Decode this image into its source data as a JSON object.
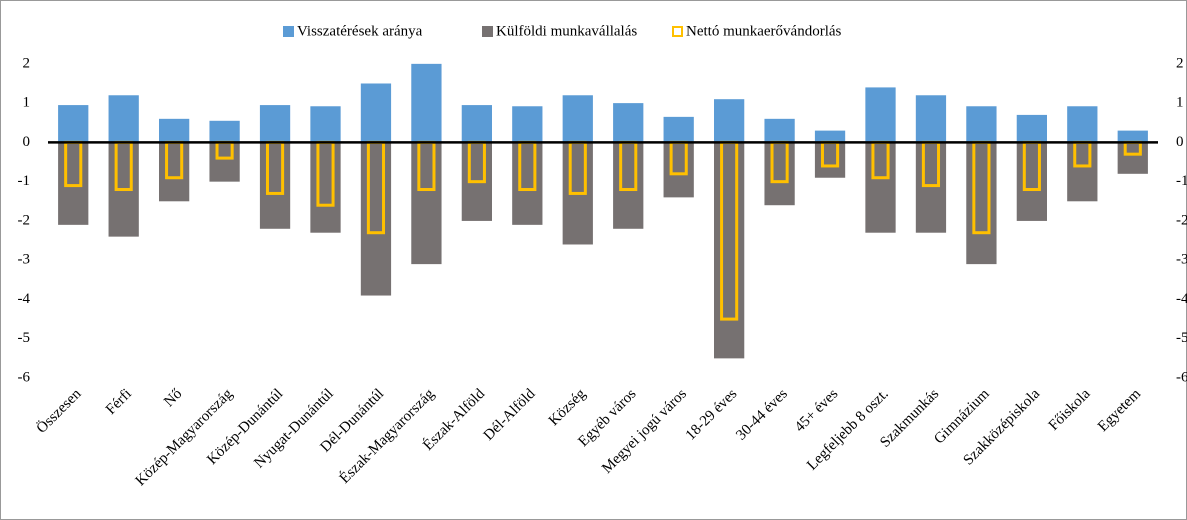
{
  "chart_data": {
    "type": "bar",
    "categories": [
      "Összesen",
      "Férfi",
      "Nő",
      "Közép-Magyarország",
      "Közép-Dunántúl",
      "Nyugat-Dunántúl",
      "Dél-Dunántúl",
      "Észak-Magyarország",
      "Észak-Alföld",
      "Dél-Alföld",
      "Község",
      "Egyéb város",
      "Megyei jogú város",
      "18-29 éves",
      "30-44 éves",
      "45+ éves",
      "Legfeljebb 8 oszt.",
      "Szakmunkás",
      "Gimnázium",
      "Szakközépiskola",
      "Főiskola",
      "Egyetem"
    ],
    "series": [
      {
        "name": "Visszatérések aránya",
        "color": "#5b9bd5",
        "values": [
          0.95,
          1.2,
          0.6,
          0.55,
          0.95,
          0.92,
          1.5,
          2.0,
          0.95,
          0.92,
          1.2,
          1.0,
          0.65,
          1.1,
          0.6,
          0.3,
          1.4,
          1.2,
          0.92,
          0.7,
          0.92,
          0.3
        ]
      },
      {
        "name": "Külföldi munkavállalás",
        "color": "#767171",
        "values": [
          -2.1,
          -2.4,
          -1.5,
          -1.0,
          -2.2,
          -2.3,
          -3.9,
          -3.1,
          -2.0,
          -2.1,
          -2.6,
          -2.2,
          -1.4,
          -5.5,
          -1.6,
          -0.9,
          -2.3,
          -2.3,
          -3.1,
          -2.0,
          -1.5,
          -0.8
        ]
      },
      {
        "name": "Nettó munkaerővándorlás",
        "color": "#ffc000",
        "values": [
          -1.1,
          -1.2,
          -0.9,
          -0.4,
          -1.3,
          -1.6,
          -2.3,
          -1.2,
          -1.0,
          -1.2,
          -1.3,
          -1.2,
          -0.8,
          -4.5,
          -1.0,
          -0.6,
          -0.9,
          -1.1,
          -2.3,
          -1.2,
          -0.6,
          -0.3
        ]
      }
    ],
    "ylim": [
      -6,
      2.2
    ],
    "yticks": [
      -6,
      -5,
      -4,
      -3,
      -2,
      -1,
      0,
      1,
      2
    ],
    "legend": "top"
  }
}
